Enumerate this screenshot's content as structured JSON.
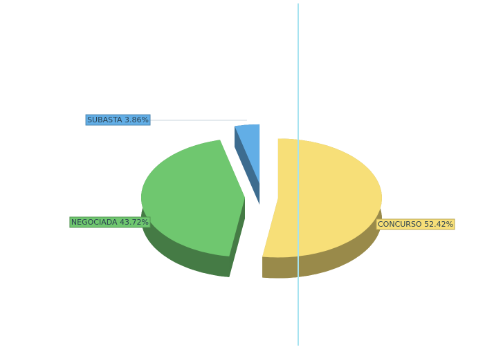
{
  "chart_data": {
    "type": "pie",
    "categories": [
      "CONCURSO",
      "NEGOCIADA",
      "SUBASTA"
    ],
    "values": [
      52.42,
      43.72,
      3.86
    ],
    "value_labels": [
      "52.42%",
      "43.72%",
      "3.86%"
    ],
    "colors": [
      "#f7df78",
      "#6fc76f",
      "#62aee6"
    ],
    "explode": true,
    "three_d": true
  }
}
